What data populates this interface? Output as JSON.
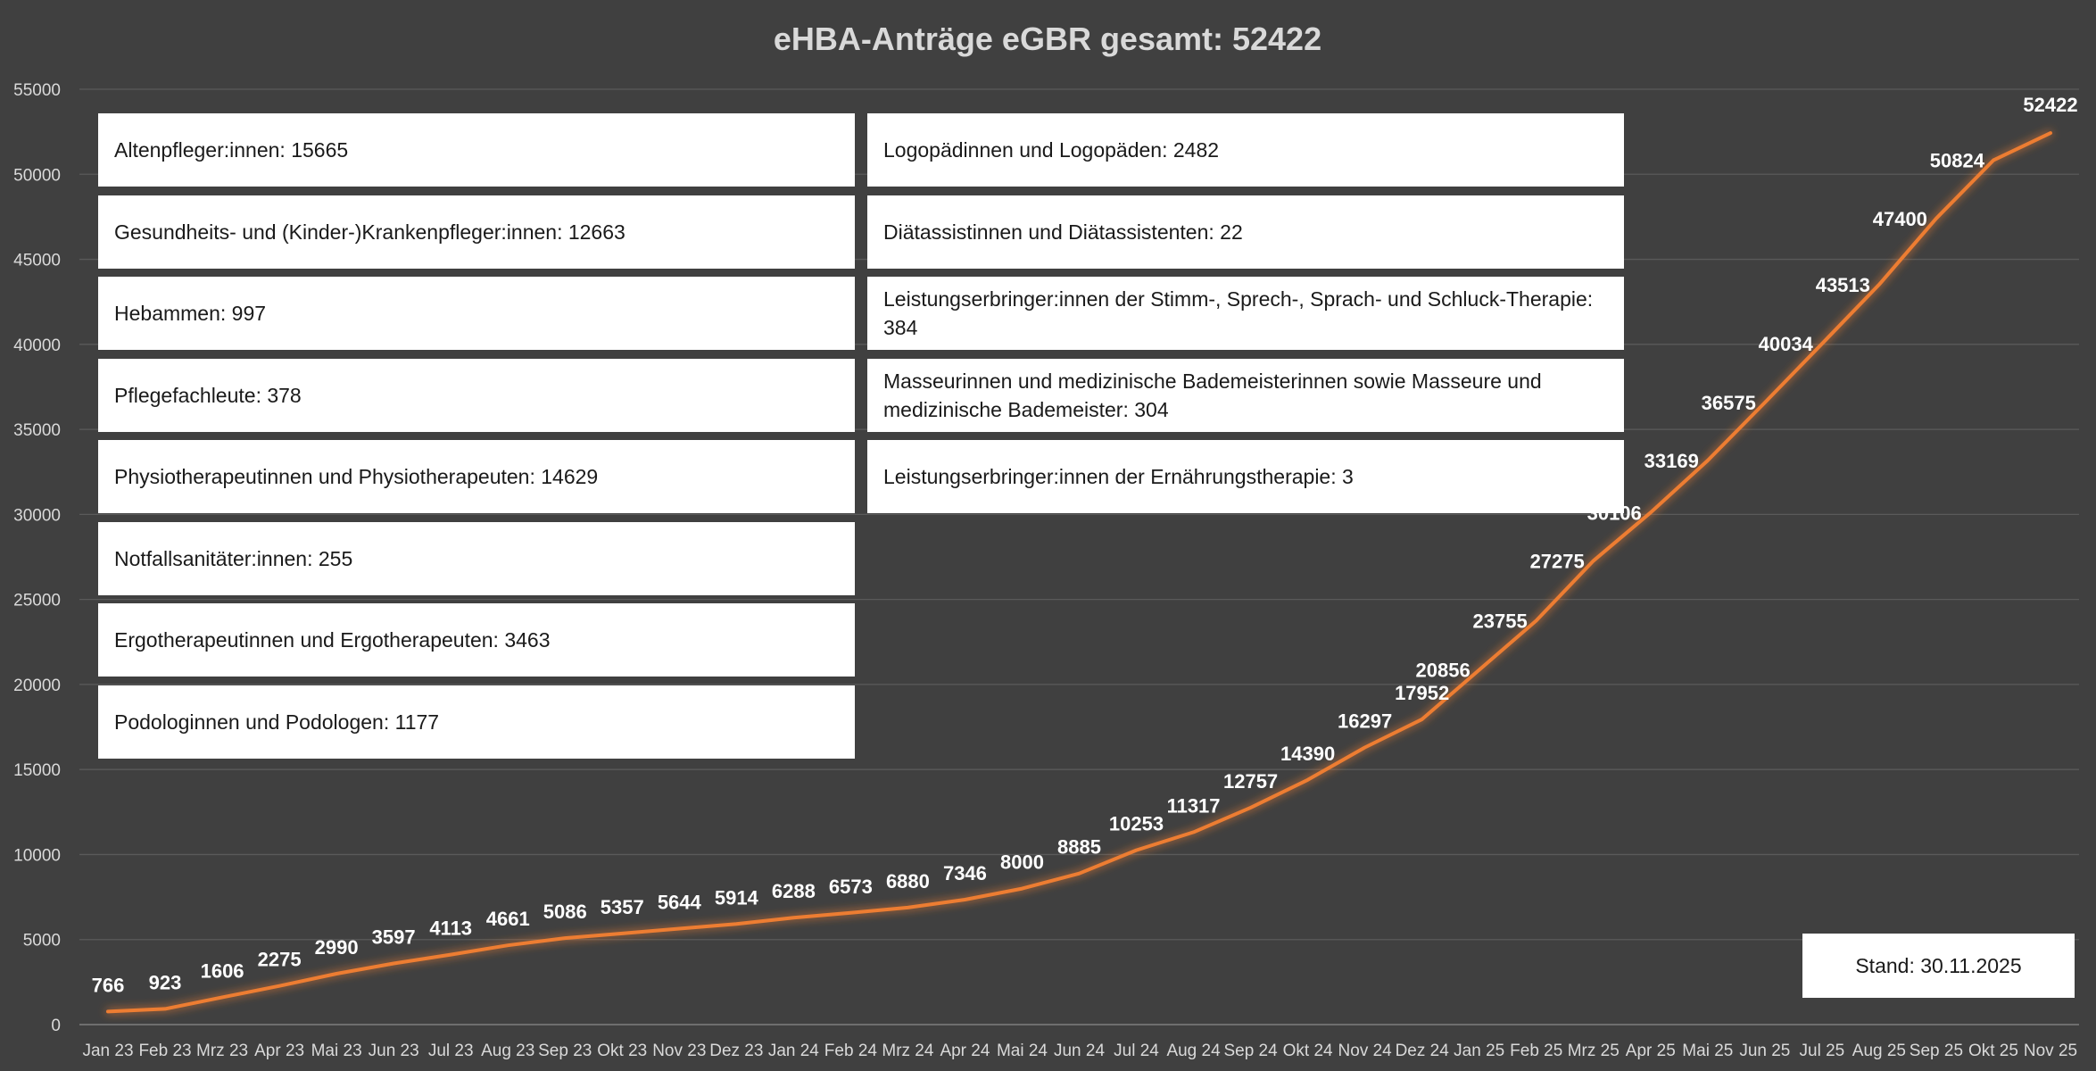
{
  "chart_data": {
    "type": "line",
    "title": "eHBA-Anträge eGBR gesamt: 52422",
    "xlabel": "",
    "ylabel": "",
    "ylim": [
      0,
      55000
    ],
    "yticks": [
      0,
      5000,
      10000,
      15000,
      20000,
      25000,
      30000,
      35000,
      40000,
      45000,
      50000,
      55000
    ],
    "grid": true,
    "line_color": "#ed7d31",
    "categories": [
      "Jan 23",
      "Feb 23",
      "Mrz 23",
      "Apr 23",
      "Mai 23",
      "Jun 23",
      "Jul 23",
      "Aug 23",
      "Sep 23",
      "Okt 23",
      "Nov 23",
      "Dez 23",
      "Jan 24",
      "Feb 24",
      "Mrz 24",
      "Apr 24",
      "Mai 24",
      "Jun 24",
      "Jul 24",
      "Aug 24",
      "Sep 24",
      "Okt 24",
      "Nov 24",
      "Dez 24",
      "Jan 25",
      "Feb 25",
      "Mrz 25",
      "Apr 25",
      "Mai 25",
      "Jun 25",
      "Jul 25",
      "Aug 25",
      "Sep 25",
      "Okt 25",
      "Nov 25"
    ],
    "values": [
      766,
      923,
      1606,
      2275,
      2990,
      3597,
      4113,
      4661,
      5086,
      5357,
      5644,
      5914,
      6288,
      6573,
      6880,
      7346,
      8000,
      8885,
      10253,
      11317,
      12757,
      14390,
      16297,
      17952,
      20856,
      23755,
      27275,
      30106,
      33169,
      36575,
      40034,
      43513,
      47400,
      50824,
      52422
    ],
    "annotations": {
      "left_boxes": [
        "Altenpfleger:innen: 15665",
        "Gesundheits- und (Kinder-)Krankenpfleger:innen: 12663",
        "Hebammen: 997",
        "Pflegefachleute: 378",
        "Physiotherapeutinnen und Physiotherapeuten: 14629",
        "Notfallsanitäter:innen: 255",
        "Ergotherapeutinnen und Ergotherapeuten: 3463",
        "Podologinnen und Podologen: 1177"
      ],
      "right_boxes": [
        "Logopädinnen und Logopäden: 2482",
        "Diätassistinnen und Diätassistenten: 22",
        "Leistungserbringer:innen der Stimm-, Sprech-, Sprach- und Schluck-Therapie: 384",
        "Masseurinnen und medizinische Bademeisterinnen sowie Masseure und medizinische Bademeister: 304",
        "Leistungserbringer:innen der Ernährungstherapie: 3"
      ],
      "date_note": "Stand: 30.11.2025"
    }
  }
}
